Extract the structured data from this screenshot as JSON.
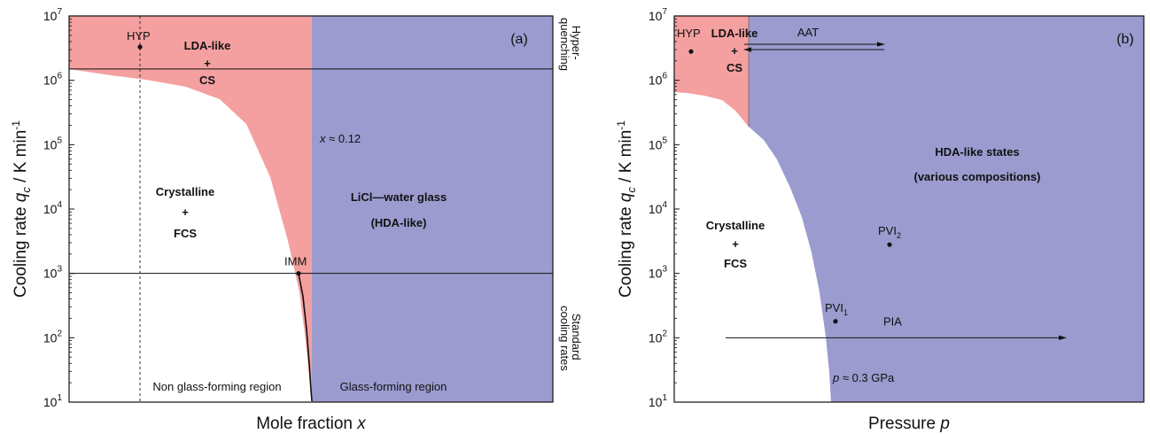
{
  "colors": {
    "red_region": "#f4a0a0",
    "blue_region": "#9b9bcf",
    "axis": "#111111"
  },
  "chart_data": [
    {
      "type": "area",
      "panel_label": "(a)",
      "xlabel": "Mole fraction x",
      "xlabel_main": "Mole fraction ",
      "xlabel_var": "x",
      "ylabel_prefix": "Cooling rate ",
      "ylabel_var": "q",
      "ylabel_sub": "c",
      "ylabel_suffix": " / K min",
      "ylabel_sup": "-1",
      "y_scale": "log",
      "ylim": [
        10,
        10000000
      ],
      "y_ticks": [
        {
          "base": "10",
          "exp": "1"
        },
        {
          "base": "10",
          "exp": "2"
        },
        {
          "base": "10",
          "exp": "3"
        },
        {
          "base": "10",
          "exp": "4"
        },
        {
          "base": "10",
          "exp": "5"
        },
        {
          "base": "10",
          "exp": "6"
        },
        {
          "base": "10",
          "exp": "7"
        }
      ],
      "right_labels": {
        "top": [
          "Hyper-",
          "quenching"
        ],
        "bottom": [
          "Standard",
          "cooling rates"
        ]
      },
      "hlines_q": [
        1500000,
        1000
      ],
      "glass_boundary_x": 0.12,
      "regions": [
        {
          "name": "LDA-like + CS",
          "lines": [
            "LDA-like",
            "+",
            "CS"
          ]
        },
        {
          "name": "Crystalline + FCS",
          "lines": [
            "Crystalline",
            "+",
            "FCS"
          ]
        },
        {
          "name": "LiCl—water glass (HDA-like)",
          "lines": [
            "LiCl—water glass",
            "(HDA-like)"
          ]
        }
      ],
      "points": [
        {
          "label": "HYP",
          "q": 3300000
        },
        {
          "label": "IMM",
          "q": 1000
        }
      ],
      "annotations": {
        "x_approx": "x ≈ 0.12",
        "x_approx_var": "x",
        "x_approx_val": " ≈ 0.12",
        "non_glass": "Non glass-forming region",
        "glass": "Glass-forming region"
      }
    },
    {
      "type": "area",
      "panel_label": "(b)",
      "xlabel": "Pressure p",
      "xlabel_main": "Pressure ",
      "xlabel_var": "p",
      "ylabel_prefix": "Cooling rate ",
      "ylabel_var": "q",
      "ylabel_sub": "c",
      "ylabel_suffix": " / K min",
      "ylabel_sup": "-1",
      "y_scale": "log",
      "ylim": [
        10,
        10000000
      ],
      "y_ticks": [
        {
          "base": "10",
          "exp": "1"
        },
        {
          "base": "10",
          "exp": "2"
        },
        {
          "base": "10",
          "exp": "3"
        },
        {
          "base": "10",
          "exp": "4"
        },
        {
          "base": "10",
          "exp": "5"
        },
        {
          "base": "10",
          "exp": "6"
        },
        {
          "base": "10",
          "exp": "7"
        }
      ],
      "regions": [
        {
          "name": "LDA-like + CS",
          "lines": [
            "LDA-like",
            "+",
            "CS"
          ]
        },
        {
          "name": "Crystalline + FCS",
          "lines": [
            "Crystalline",
            "+",
            "FCS"
          ]
        },
        {
          "name": "HDA-like states (various compositions)",
          "lines": [
            "HDA-like states",
            "(various compositions)"
          ]
        }
      ],
      "points": [
        {
          "label": "HYP",
          "q": 2800000
        },
        {
          "label": "PVI",
          "sub": "2",
          "q": 2800
        },
        {
          "label": "PVI",
          "sub": "1",
          "q": 180
        }
      ],
      "arrows": [
        {
          "label": "AAT",
          "q": 3300000
        },
        {
          "label": "PIA",
          "q": 100
        }
      ],
      "annotations": {
        "p_approx_var": "p",
        "p_approx_val": " ≈ 0.3 GPa"
      }
    }
  ]
}
